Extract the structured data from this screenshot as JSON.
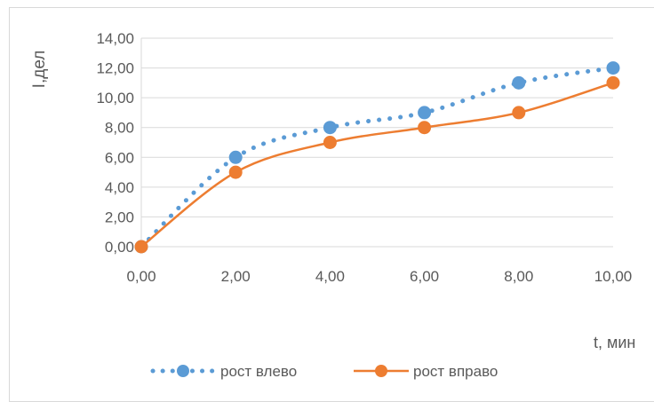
{
  "chart_data": {
    "type": "line",
    "title": "",
    "xlabel": "t, мин",
    "ylabel": "I,дел",
    "xlim": [
      0,
      10
    ],
    "ylim": [
      0,
      14
    ],
    "x_ticks": [
      0,
      2,
      4,
      6,
      8,
      10
    ],
    "y_ticks": [
      0,
      2,
      4,
      6,
      8,
      10,
      12,
      14
    ],
    "x_tick_labels": [
      "0,00",
      "2,00",
      "4,00",
      "6,00",
      "8,00",
      "10,00"
    ],
    "y_tick_labels": [
      "0,00",
      "2,00",
      "4,00",
      "6,00",
      "8,00",
      "10,00",
      "12,00",
      "14,00"
    ],
    "grid": "horizontal",
    "legend_position": "bottom",
    "series": [
      {
        "name": "рост влево",
        "color": "#5b9bd5",
        "style": "dotted",
        "marker": "circle",
        "x": [
          0,
          2,
          4,
          6,
          8,
          10
        ],
        "values": [
          0,
          6,
          8,
          9,
          11,
          12
        ]
      },
      {
        "name": "рост вправо",
        "color": "#ed7d31",
        "style": "solid-smooth",
        "marker": "circle",
        "x": [
          0,
          2,
          4,
          6,
          8,
          10
        ],
        "values": [
          0,
          5,
          7,
          8,
          9,
          11
        ]
      }
    ]
  }
}
